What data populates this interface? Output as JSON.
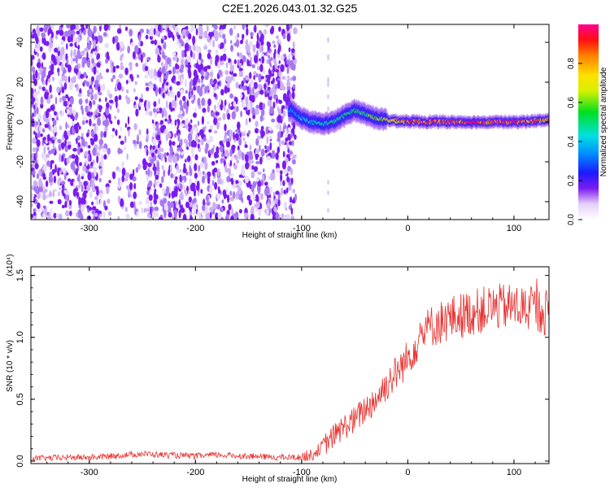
{
  "figure": {
    "title": "C2E1.2026.043.01.32.G25"
  },
  "chart_data": [
    {
      "type": "heatmap",
      "name": "spectrogram",
      "xlabel": "Height of straight line (km)",
      "ylabel": "Frequency (Hz)",
      "xlim": [
        -355,
        133
      ],
      "ylim": [
        -49,
        49
      ],
      "xticks": [
        -300,
        -200,
        -100,
        0,
        100
      ],
      "xticklabels": [
        "-300",
        "-200",
        "-100",
        "0",
        "100"
      ],
      "yticks": [
        -40,
        -20,
        0,
        20,
        40
      ],
      "yticklabels": [
        "-40",
        "-20",
        "0",
        "20",
        "40"
      ],
      "colorbar": {
        "label": "Normalized spectral amplitude",
        "range": [
          0,
          1
        ],
        "ticks": [
          0.0,
          0.2,
          0.4,
          0.6,
          0.8
        ],
        "ticklabels": [
          "0.0",
          "0.2",
          "0.4",
          "0.6",
          "0.8"
        ]
      },
      "noise_region_x": [
        -355,
        -105
      ],
      "gap_x": [
        -288,
        -247
      ],
      "signal_track": [
        [
          -110,
          6
        ],
        [
          -100,
          2
        ],
        [
          -90,
          0
        ],
        [
          -80,
          -1
        ],
        [
          -70,
          0
        ],
        [
          -60,
          3
        ],
        [
          -50,
          6
        ],
        [
          -40,
          4
        ],
        [
          -30,
          2
        ],
        [
          -20,
          1
        ],
        [
          -10,
          0.5
        ],
        [
          0,
          0.3
        ],
        [
          20,
          0.1
        ],
        [
          40,
          0
        ],
        [
          60,
          0
        ],
        [
          80,
          0
        ],
        [
          100,
          0
        ],
        [
          120,
          0.5
        ],
        [
          133,
          1
        ]
      ],
      "signal_amplitude": [
        [
          -110,
          0.35
        ],
        [
          -90,
          0.45
        ],
        [
          -70,
          0.5
        ],
        [
          -50,
          0.55
        ],
        [
          -30,
          0.65
        ],
        [
          -10,
          0.8
        ],
        [
          0,
          0.9
        ],
        [
          20,
          0.95
        ],
        [
          60,
          1.0
        ],
        [
          100,
          0.98
        ],
        [
          133,
          0.9
        ]
      ]
    },
    {
      "type": "line",
      "name": "snr",
      "xlabel": "Height of straight line (km)",
      "ylabel": "SNR (10 * v/v)",
      "scale_label": "(x10⁴)",
      "xlim": [
        -355,
        133
      ],
      "ylim": [
        -0.02,
        1.57
      ],
      "xticks": [
        -300,
        -200,
        -100,
        0,
        100
      ],
      "xticklabels": [
        "-300",
        "-200",
        "-100",
        "0",
        "100"
      ],
      "yticks": [
        0.0,
        0.5,
        1.0,
        1.5
      ],
      "yticklabels": [
        "0.0",
        "0.5",
        "1.0",
        "1.5"
      ],
      "color": "#e8302e",
      "series": [
        {
          "name": "SNR",
          "x": [
            -355,
            -320,
            -300,
            -280,
            -250,
            -230,
            -200,
            -180,
            -150,
            -120,
            -100,
            -90,
            -80,
            -70,
            -60,
            -50,
            -40,
            -30,
            -20,
            -10,
            0,
            10,
            20,
            30,
            40,
            60,
            80,
            100,
            120,
            133
          ],
          "y": [
            0.02,
            0.03,
            0.03,
            0.04,
            0.06,
            0.05,
            0.04,
            0.05,
            0.04,
            0.03,
            0.03,
            0.05,
            0.12,
            0.2,
            0.28,
            0.33,
            0.42,
            0.5,
            0.62,
            0.72,
            0.83,
            0.98,
            1.08,
            1.12,
            1.15,
            1.2,
            1.24,
            1.25,
            1.22,
            1.2
          ]
        }
      ]
    }
  ]
}
